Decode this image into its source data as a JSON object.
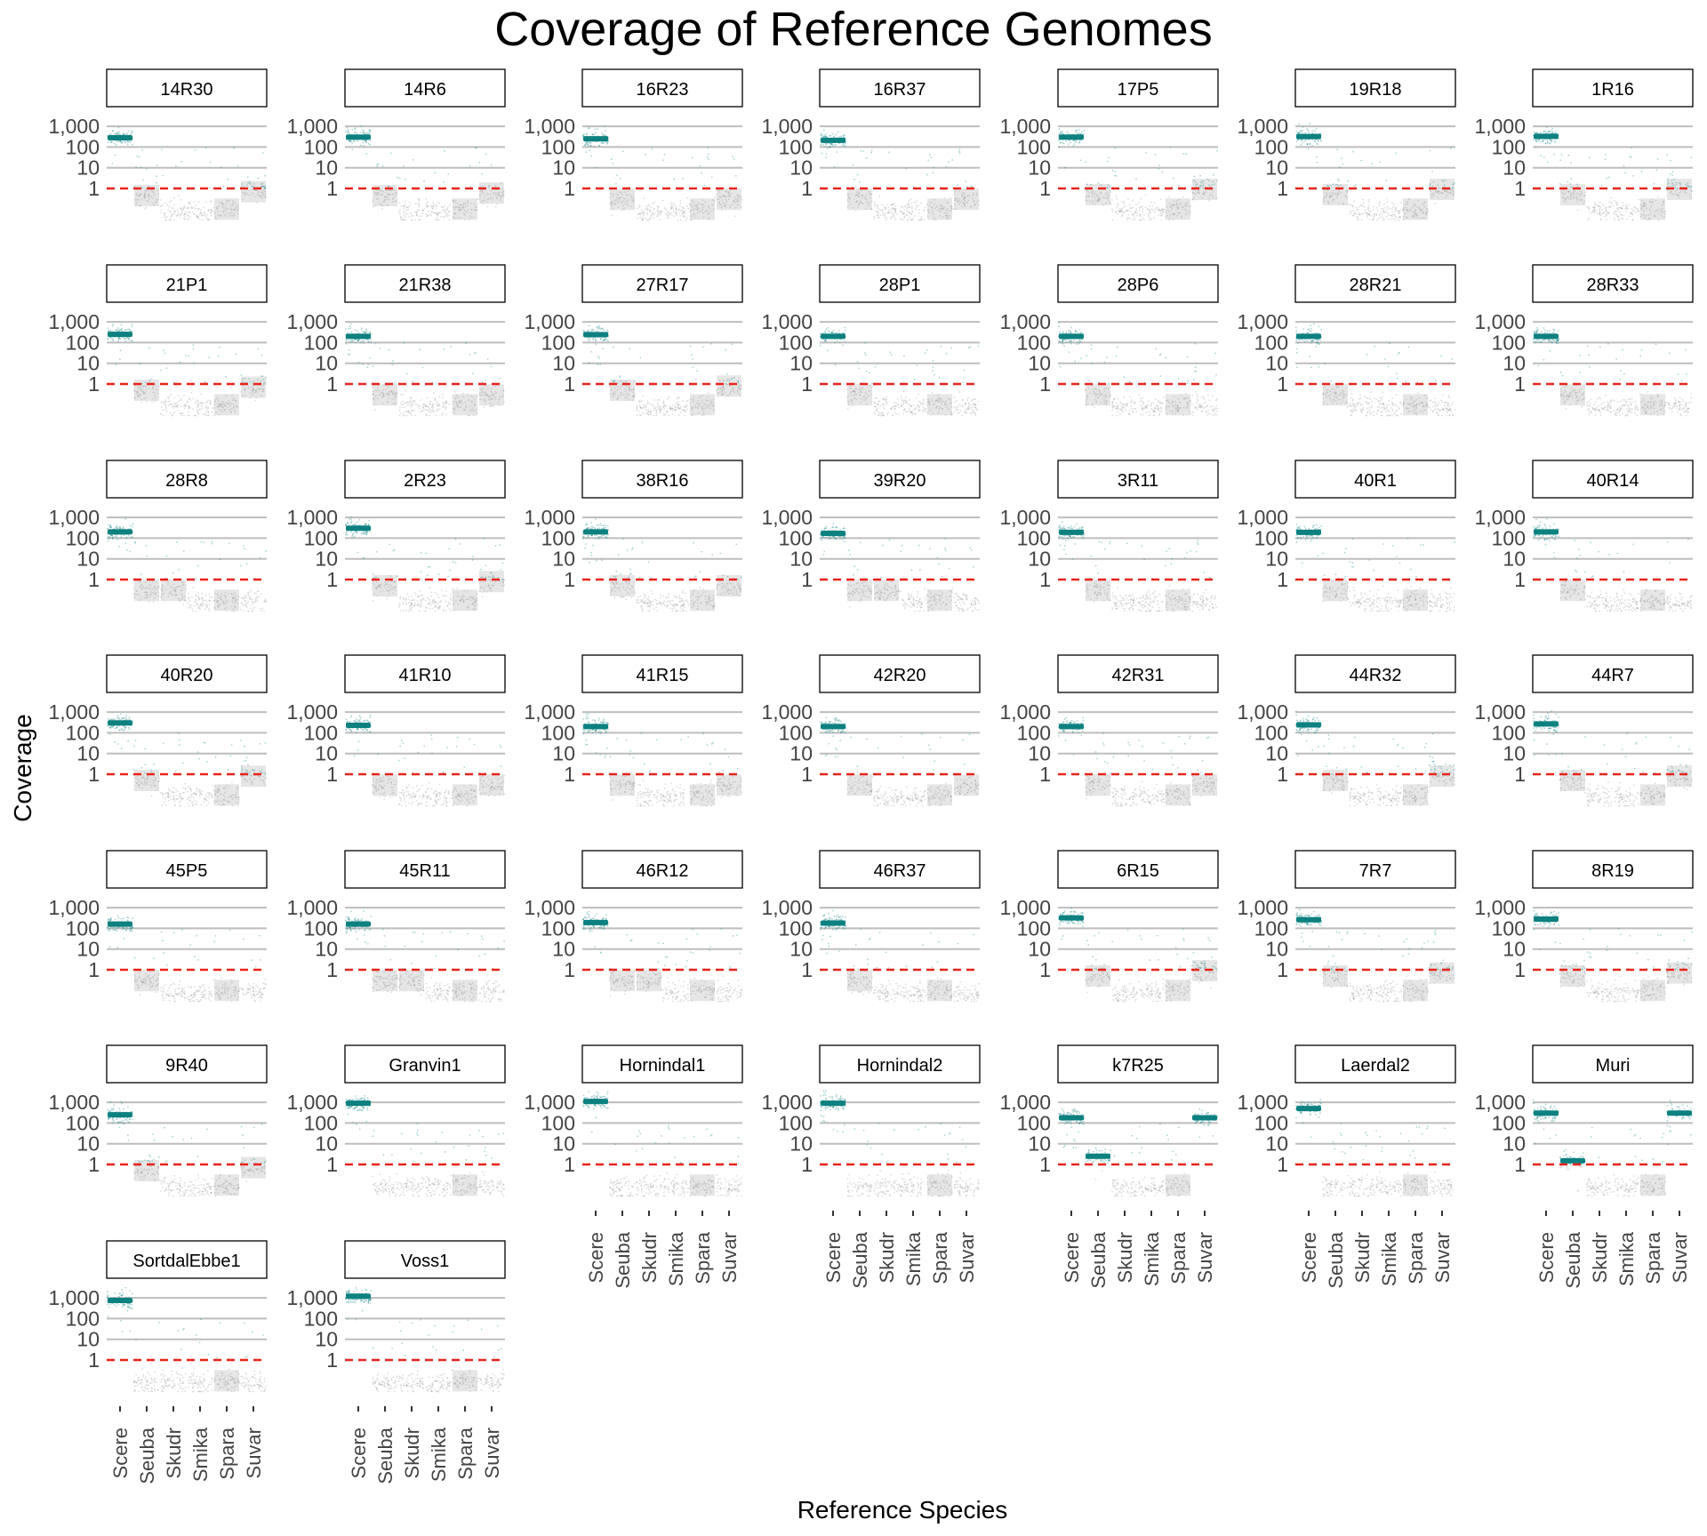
{
  "chart_data": {
    "type": "scatter",
    "title": "Coverage of Reference Genomes",
    "xlabel": "Reference Species",
    "ylabel": "Coverage",
    "y_scale": "log10",
    "y_ticks": [
      "1",
      "10",
      "100",
      "1,000"
    ],
    "x_categories": [
      "Scere",
      "Seuba",
      "Skudr",
      "Smika",
      "Spara",
      "Suvar"
    ],
    "reference_line": {
      "y": 1,
      "color": "#e8231a",
      "style": "dashed"
    },
    "colors": {
      "above_threshold": "#0d8080",
      "below_threshold": "#9a9a9a",
      "reference_line": "#e8231a",
      "grid": "#bdbdbd"
    },
    "legend": "none",
    "facets": [
      {
        "name": "14R30",
        "median_coverage": [
          280,
          0.45,
          0.08,
          0.08,
          0.1,
          0.7
        ]
      },
      {
        "name": "14R6",
        "median_coverage": [
          300,
          0.45,
          0.08,
          0.08,
          0.1,
          0.6
        ]
      },
      {
        "name": "16R23",
        "median_coverage": [
          250,
          0.3,
          0.08,
          0.08,
          0.1,
          0.3
        ]
      },
      {
        "name": "16R37",
        "median_coverage": [
          210,
          0.3,
          0.08,
          0.08,
          0.1,
          0.3
        ]
      },
      {
        "name": "17P5",
        "median_coverage": [
          300,
          0.5,
          0.08,
          0.08,
          0.1,
          0.9
        ]
      },
      {
        "name": "19R18",
        "median_coverage": [
          320,
          0.5,
          0.08,
          0.08,
          0.1,
          0.9
        ]
      },
      {
        "name": "1R16",
        "median_coverage": [
          330,
          0.5,
          0.08,
          0.08,
          0.1,
          0.9
        ]
      },
      {
        "name": "21P1",
        "median_coverage": [
          250,
          0.5,
          0.08,
          0.08,
          0.1,
          0.7
        ]
      },
      {
        "name": "21R38",
        "median_coverage": [
          200,
          0.3,
          0.08,
          0.08,
          0.1,
          0.3
        ]
      },
      {
        "name": "27R17",
        "median_coverage": [
          240,
          0.5,
          0.08,
          0.08,
          0.1,
          0.8
        ]
      },
      {
        "name": "28P1",
        "median_coverage": [
          200,
          0.3,
          0.08,
          0.08,
          0.1,
          0.08
        ]
      },
      {
        "name": "28P6",
        "median_coverage": [
          200,
          0.3,
          0.08,
          0.08,
          0.1,
          0.08
        ]
      },
      {
        "name": "28R21",
        "median_coverage": [
          200,
          0.3,
          0.08,
          0.08,
          0.1,
          0.08
        ]
      },
      {
        "name": "28R33",
        "median_coverage": [
          200,
          0.3,
          0.08,
          0.08,
          0.1,
          0.08
        ]
      },
      {
        "name": "28R8",
        "median_coverage": [
          200,
          0.3,
          0.3,
          0.08,
          0.1,
          0.08
        ]
      },
      {
        "name": "2R23",
        "median_coverage": [
          300,
          0.5,
          0.08,
          0.08,
          0.1,
          0.8
        ]
      },
      {
        "name": "38R16",
        "median_coverage": [
          200,
          0.5,
          0.08,
          0.08,
          0.1,
          0.5
        ]
      },
      {
        "name": "39R20",
        "median_coverage": [
          170,
          0.3,
          0.3,
          0.08,
          0.1,
          0.08
        ]
      },
      {
        "name": "3R11",
        "median_coverage": [
          190,
          0.3,
          0.08,
          0.08,
          0.1,
          0.08
        ]
      },
      {
        "name": "40R1",
        "median_coverage": [
          190,
          0.3,
          0.08,
          0.08,
          0.1,
          0.08
        ]
      },
      {
        "name": "40R14",
        "median_coverage": [
          200,
          0.3,
          0.08,
          0.08,
          0.1,
          0.08
        ]
      },
      {
        "name": "40R20",
        "median_coverage": [
          300,
          0.5,
          0.08,
          0.08,
          0.1,
          0.8
        ]
      },
      {
        "name": "41R10",
        "median_coverage": [
          230,
          0.3,
          0.08,
          0.08,
          0.1,
          0.3
        ]
      },
      {
        "name": "41R15",
        "median_coverage": [
          200,
          0.3,
          0.08,
          0.08,
          0.1,
          0.3
        ]
      },
      {
        "name": "42R20",
        "median_coverage": [
          200,
          0.3,
          0.08,
          0.08,
          0.1,
          0.3
        ]
      },
      {
        "name": "42R31",
        "median_coverage": [
          200,
          0.3,
          0.08,
          0.08,
          0.1,
          0.3
        ]
      },
      {
        "name": "44R32",
        "median_coverage": [
          240,
          0.5,
          0.08,
          0.08,
          0.1,
          0.8
        ]
      },
      {
        "name": "44R7",
        "median_coverage": [
          270,
          0.5,
          0.08,
          0.08,
          0.1,
          0.8
        ]
      },
      {
        "name": "45P5",
        "median_coverage": [
          160,
          0.3,
          0.08,
          0.08,
          0.1,
          0.08
        ]
      },
      {
        "name": "45R11",
        "median_coverage": [
          160,
          0.3,
          0.3,
          0.08,
          0.1,
          0.08
        ]
      },
      {
        "name": "46R12",
        "median_coverage": [
          190,
          0.3,
          0.3,
          0.08,
          0.1,
          0.08
        ]
      },
      {
        "name": "46R37",
        "median_coverage": [
          180,
          0.3,
          0.08,
          0.08,
          0.1,
          0.08
        ]
      },
      {
        "name": "6R15",
        "median_coverage": [
          320,
          0.5,
          0.08,
          0.08,
          0.1,
          0.9
        ]
      },
      {
        "name": "7R7",
        "median_coverage": [
          260,
          0.5,
          0.08,
          0.08,
          0.1,
          0.7
        ]
      },
      {
        "name": "8R19",
        "median_coverage": [
          280,
          0.5,
          0.08,
          0.08,
          0.1,
          0.7
        ]
      },
      {
        "name": "9R40",
        "median_coverage": [
          250,
          0.5,
          0.08,
          0.08,
          0.1,
          0.7
        ]
      },
      {
        "name": "Granvin1",
        "median_coverage": [
          900,
          0.08,
          0.08,
          0.08,
          0.1,
          0.08
        ]
      },
      {
        "name": "Hornindal1",
        "median_coverage": [
          1100,
          0.08,
          0.08,
          0.08,
          0.1,
          0.08
        ]
      },
      {
        "name": "Hornindal2",
        "median_coverage": [
          900,
          0.08,
          0.08,
          0.08,
          0.1,
          0.08
        ]
      },
      {
        "name": "k7R25",
        "median_coverage": [
          180,
          2.5,
          0.08,
          0.08,
          0.1,
          180
        ]
      },
      {
        "name": "Laerdal2",
        "median_coverage": [
          500,
          0.08,
          0.08,
          0.08,
          0.1,
          0.08
        ]
      },
      {
        "name": "Muri",
        "median_coverage": [
          300,
          1.5,
          0.08,
          0.08,
          0.1,
          300
        ]
      },
      {
        "name": "SortdalEbbe1",
        "median_coverage": [
          750,
          0.08,
          0.08,
          0.08,
          0.1,
          0.08
        ]
      },
      {
        "name": "Voss1",
        "median_coverage": [
          1200,
          0.08,
          0.08,
          0.08,
          0.1,
          0.08
        ]
      }
    ]
  }
}
